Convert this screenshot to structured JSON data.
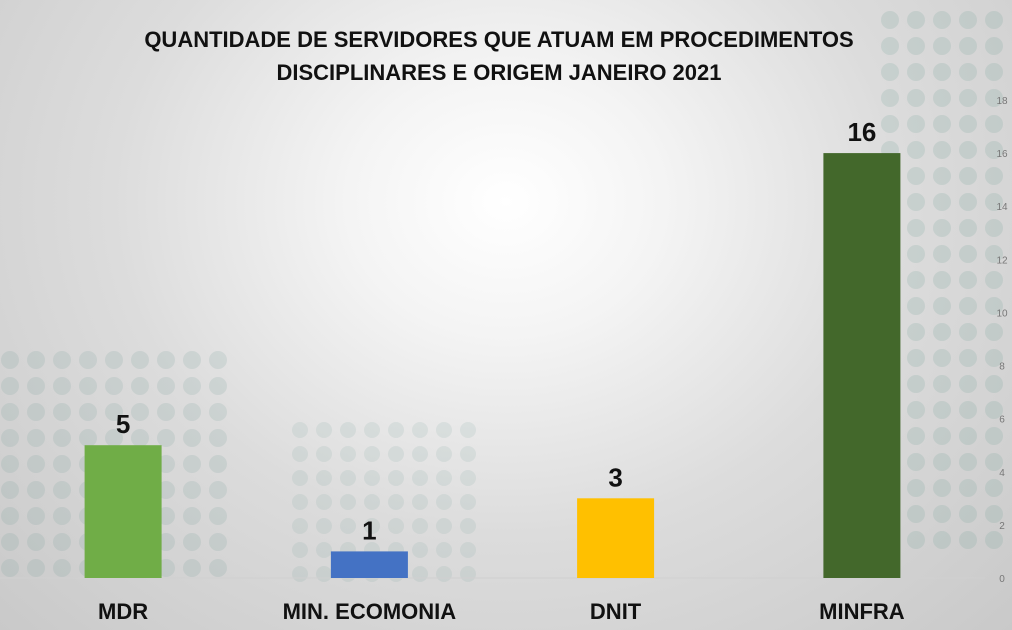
{
  "chart_data": {
    "type": "bar",
    "title_lines": [
      "QUANTIDADE DE SERVIDORES QUE ATUAM EM PROCEDIMENTOS",
      "DISCIPLINARES E ORIGEM JANEIRO 2021"
    ],
    "categories": [
      "MDR",
      "MIN. ECOMONIA",
      "DNIT",
      "MINFRA"
    ],
    "values": [
      5,
      1,
      3,
      16
    ],
    "bar_colors": [
      "#70AD47",
      "#4472C4",
      "#FFC000",
      "#43682B"
    ],
    "data_labels": [
      "5",
      "1",
      "3",
      "16"
    ],
    "xlabel": "",
    "ylabel": "",
    "ylim": [
      0,
      18
    ],
    "y_ticks": [
      "0",
      "2",
      "4",
      "6",
      "8",
      "10",
      "12",
      "14",
      "16",
      "18"
    ],
    "y_axis_position": "right",
    "grid": false,
    "legend": "none"
  }
}
